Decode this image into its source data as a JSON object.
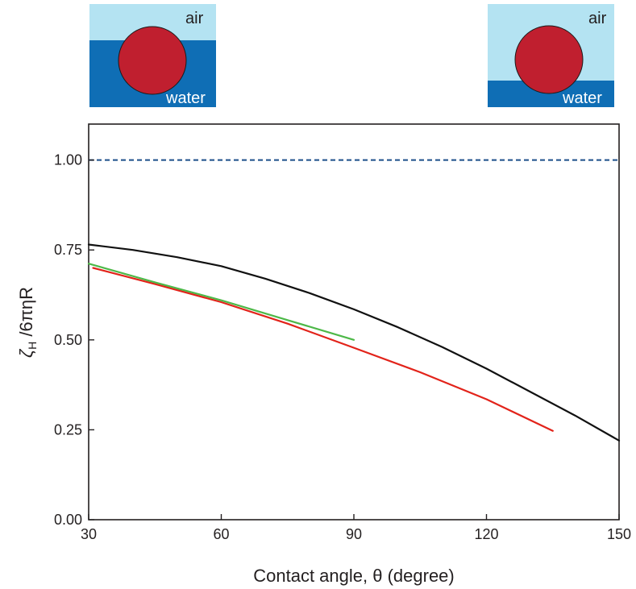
{
  "chart_data": {
    "type": "line",
    "xlabel": "Contact angle, θ (degree)",
    "ylabel": {
      "main": "ζ",
      "sub": "H",
      "rest": " /6πηR"
    },
    "xlim": [
      30,
      150
    ],
    "ylim": [
      0,
      1.1
    ],
    "xticks": [
      30,
      60,
      90,
      120,
      150
    ],
    "yticks": [
      0,
      0.25,
      0.5,
      0.75,
      1.0
    ],
    "xtick_labels": [
      "30",
      "60",
      "90",
      "120",
      "150"
    ],
    "ytick_labels": [
      "0.00",
      "0.25",
      "0.50",
      "0.75",
      "1.00"
    ],
    "grid": false,
    "reference_line": {
      "y": 1.0,
      "color": "#1c4f8a",
      "style": "dashed"
    },
    "series": [
      {
        "color": "#111111",
        "x": [
          30,
          40,
          50,
          60,
          70,
          80,
          90,
          100,
          110,
          120,
          130,
          140,
          150
        ],
        "y": [
          0.765,
          0.75,
          0.73,
          0.705,
          0.67,
          0.63,
          0.585,
          0.535,
          0.48,
          0.42,
          0.355,
          0.29,
          0.22
        ]
      },
      {
        "color": "#e2231a",
        "x": [
          31,
          45,
          60,
          75,
          90,
          105,
          120,
          135
        ],
        "y": [
          0.7,
          0.655,
          0.605,
          0.545,
          0.478,
          0.41,
          0.335,
          0.247
        ]
      },
      {
        "color": "#4db848",
        "x": [
          30,
          45,
          60,
          75,
          90
        ],
        "y": [
          0.712,
          0.66,
          0.61,
          0.555,
          0.5
        ]
      }
    ]
  },
  "insets": [
    {
      "top_label": "air",
      "bottom_label": "water",
      "light_color": "#b4e3f2",
      "dark_color": "#0f6eb5",
      "particle_color": "#c01f2f",
      "interface_fraction": 0.6
    },
    {
      "top_label": "air",
      "bottom_label": "water",
      "light_color": "#b4e3f2",
      "dark_color": "#0f6eb5",
      "particle_color": "#c01f2f",
      "interface_fraction": 0.3
    }
  ]
}
